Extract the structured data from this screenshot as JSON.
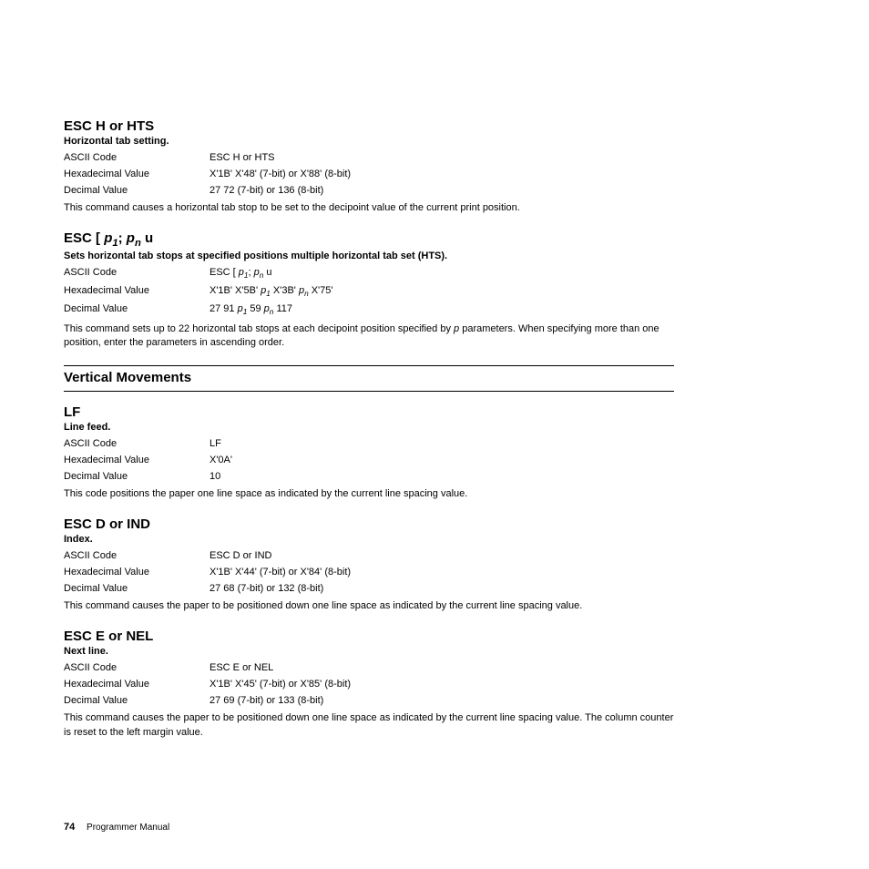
{
  "entries": [
    {
      "title_plain": "ESC H or HTS",
      "subtitle": "Horizontal tab setting.",
      "rows": [
        {
          "label": "ASCII Code",
          "value_plain": "ESC H or HTS"
        },
        {
          "label": "Hexadecimal Value",
          "value_plain": "X'1B' X'48' (7-bit) or X'88' (8-bit)"
        },
        {
          "label": "Decimal Value",
          "value_plain": "27 72 (7-bit) or 136 (8-bit)"
        }
      ],
      "desc": "This command causes a horizontal tab stop to be set to the decipoint value of the current print position."
    },
    {
      "title_html": "ESC [ <span class='ital'>p<span class='sub'>1</span></span>; <span class='ital'>p<span class='sub'>n</span></span> u",
      "subtitle": "Sets horizontal tab stops at specified positions multiple horizontal tab set (HTS).",
      "rows": [
        {
          "label": "ASCII Code",
          "value_html": "ESC [ <span class='ital'>p<span class='sub'>1</span></span>; <span class='ital'>p<span class='sub'>n</span></span> u"
        },
        {
          "label": "Hexadecimal Value",
          "value_html": "X'1B' X'5B' <span class='ital'>p<span class='sub'>1</span></span> X'3B' <span class='ital'>p<span class='sub'>n</span></span> X'75'"
        },
        {
          "label": "Decimal Value",
          "value_html": "27 91 <span class='ital'>p<span class='sub'>1</span></span> 59 <span class='ital'>p<span class='sub'>n</span></span> 117"
        }
      ],
      "desc_html": "This command sets up to 22 horizontal tab stops at each decipoint position specified by <span class='ital'>p</span> parameters. When specifying more than one position, enter the parameters in ascending order."
    }
  ],
  "section_heading": "Vertical Movements",
  "entries2": [
    {
      "title_plain": "LF",
      "subtitle": "Line feed.",
      "rows": [
        {
          "label": "ASCII Code",
          "value_plain": "LF"
        },
        {
          "label": "Hexadecimal Value",
          "value_plain": "X'0A'"
        },
        {
          "label": "Decimal Value",
          "value_plain": "10"
        }
      ],
      "desc": "This code positions the paper one line space as indicated by the current line spacing value."
    },
    {
      "title_plain": "ESC D or IND",
      "subtitle": "Index.",
      "rows": [
        {
          "label": "ASCII Code",
          "value_plain": "ESC D or IND"
        },
        {
          "label": "Hexadecimal Value",
          "value_plain": "X'1B' X'44' (7-bit) or X'84' (8-bit)"
        },
        {
          "label": "Decimal Value",
          "value_plain": "27 68 (7-bit) or 132 (8-bit)"
        }
      ],
      "desc": "This command causes the paper to be positioned down one line space as indicated by the current line spacing value."
    },
    {
      "title_plain": "ESC E or NEL",
      "subtitle": "Next line.",
      "rows": [
        {
          "label": "ASCII Code",
          "value_plain": "ESC E or NEL"
        },
        {
          "label": "Hexadecimal Value",
          "value_plain": "X'1B' X'45' (7-bit) or X'85' (8-bit)"
        },
        {
          "label": "Decimal Value",
          "value_plain": "27 69 (7-bit) or 133 (8-bit)"
        }
      ],
      "desc": "This command causes the paper to be positioned down one line space as indicated by the current line spacing value. The column counter is reset to the left margin value."
    }
  ],
  "footer": {
    "page": "74",
    "doc": "Programmer Manual"
  }
}
